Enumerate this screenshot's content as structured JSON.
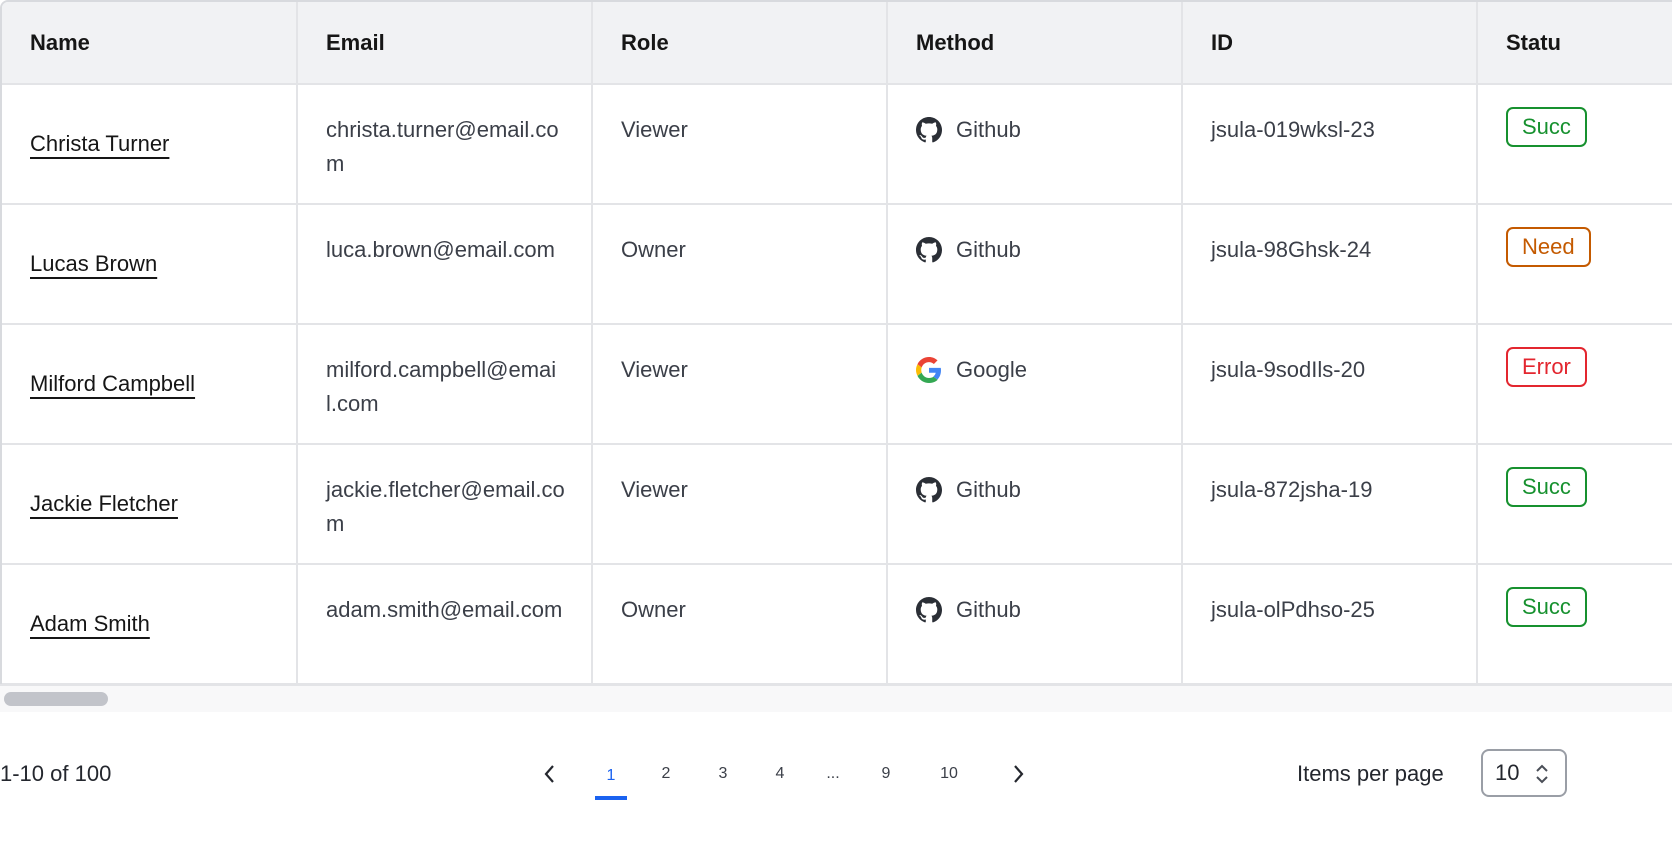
{
  "table": {
    "columns": [
      "Name",
      "Email",
      "Role",
      "Method",
      "ID",
      "Statu"
    ],
    "rows": [
      {
        "name": "Christa Turner",
        "email": "christa.turner@email.com",
        "role": "Viewer",
        "method": "Github",
        "method_icon": "github-icon",
        "id": "jsula-019wksl-23",
        "status": "Succ",
        "status_color": "#17912f"
      },
      {
        "name": "Lucas Brown",
        "email": "luca.brown@email.com",
        "role": "Owner",
        "method": "Github",
        "method_icon": "github-icon",
        "id": "jsula-98Ghsk-24",
        "status": "Need",
        "status_color": "#c45a00"
      },
      {
        "name": "Milford Campbell",
        "email": "milford.campbell@email.com",
        "role": "Viewer",
        "method": "Google",
        "method_icon": "google-icon",
        "id": "jsula-9sodIls-20",
        "status": "Error",
        "status_color": "#e3262f"
      },
      {
        "name": "Jackie Fletcher",
        "email": "jackie.fletcher@email.com",
        "role": "Viewer",
        "method": "Github",
        "method_icon": "github-icon",
        "id": "jsula-872jsha-19",
        "status": "Succ",
        "status_color": "#17912f"
      },
      {
        "name": "Adam Smith",
        "email": "adam.smith@email.com",
        "role": "Owner",
        "method": "Github",
        "method_icon": "github-icon",
        "id": "jsula-olPdhso-25",
        "status": "Succ",
        "status_color": "#17912f"
      }
    ]
  },
  "pagination": {
    "range_text": "1-10 of 100",
    "pages": [
      "1",
      "2",
      "3",
      "4",
      "...",
      "9",
      "10"
    ],
    "current_page": "1",
    "accent": "#1a62f0",
    "items_per_page_label": "Items per page",
    "items_per_page_value": "10"
  }
}
